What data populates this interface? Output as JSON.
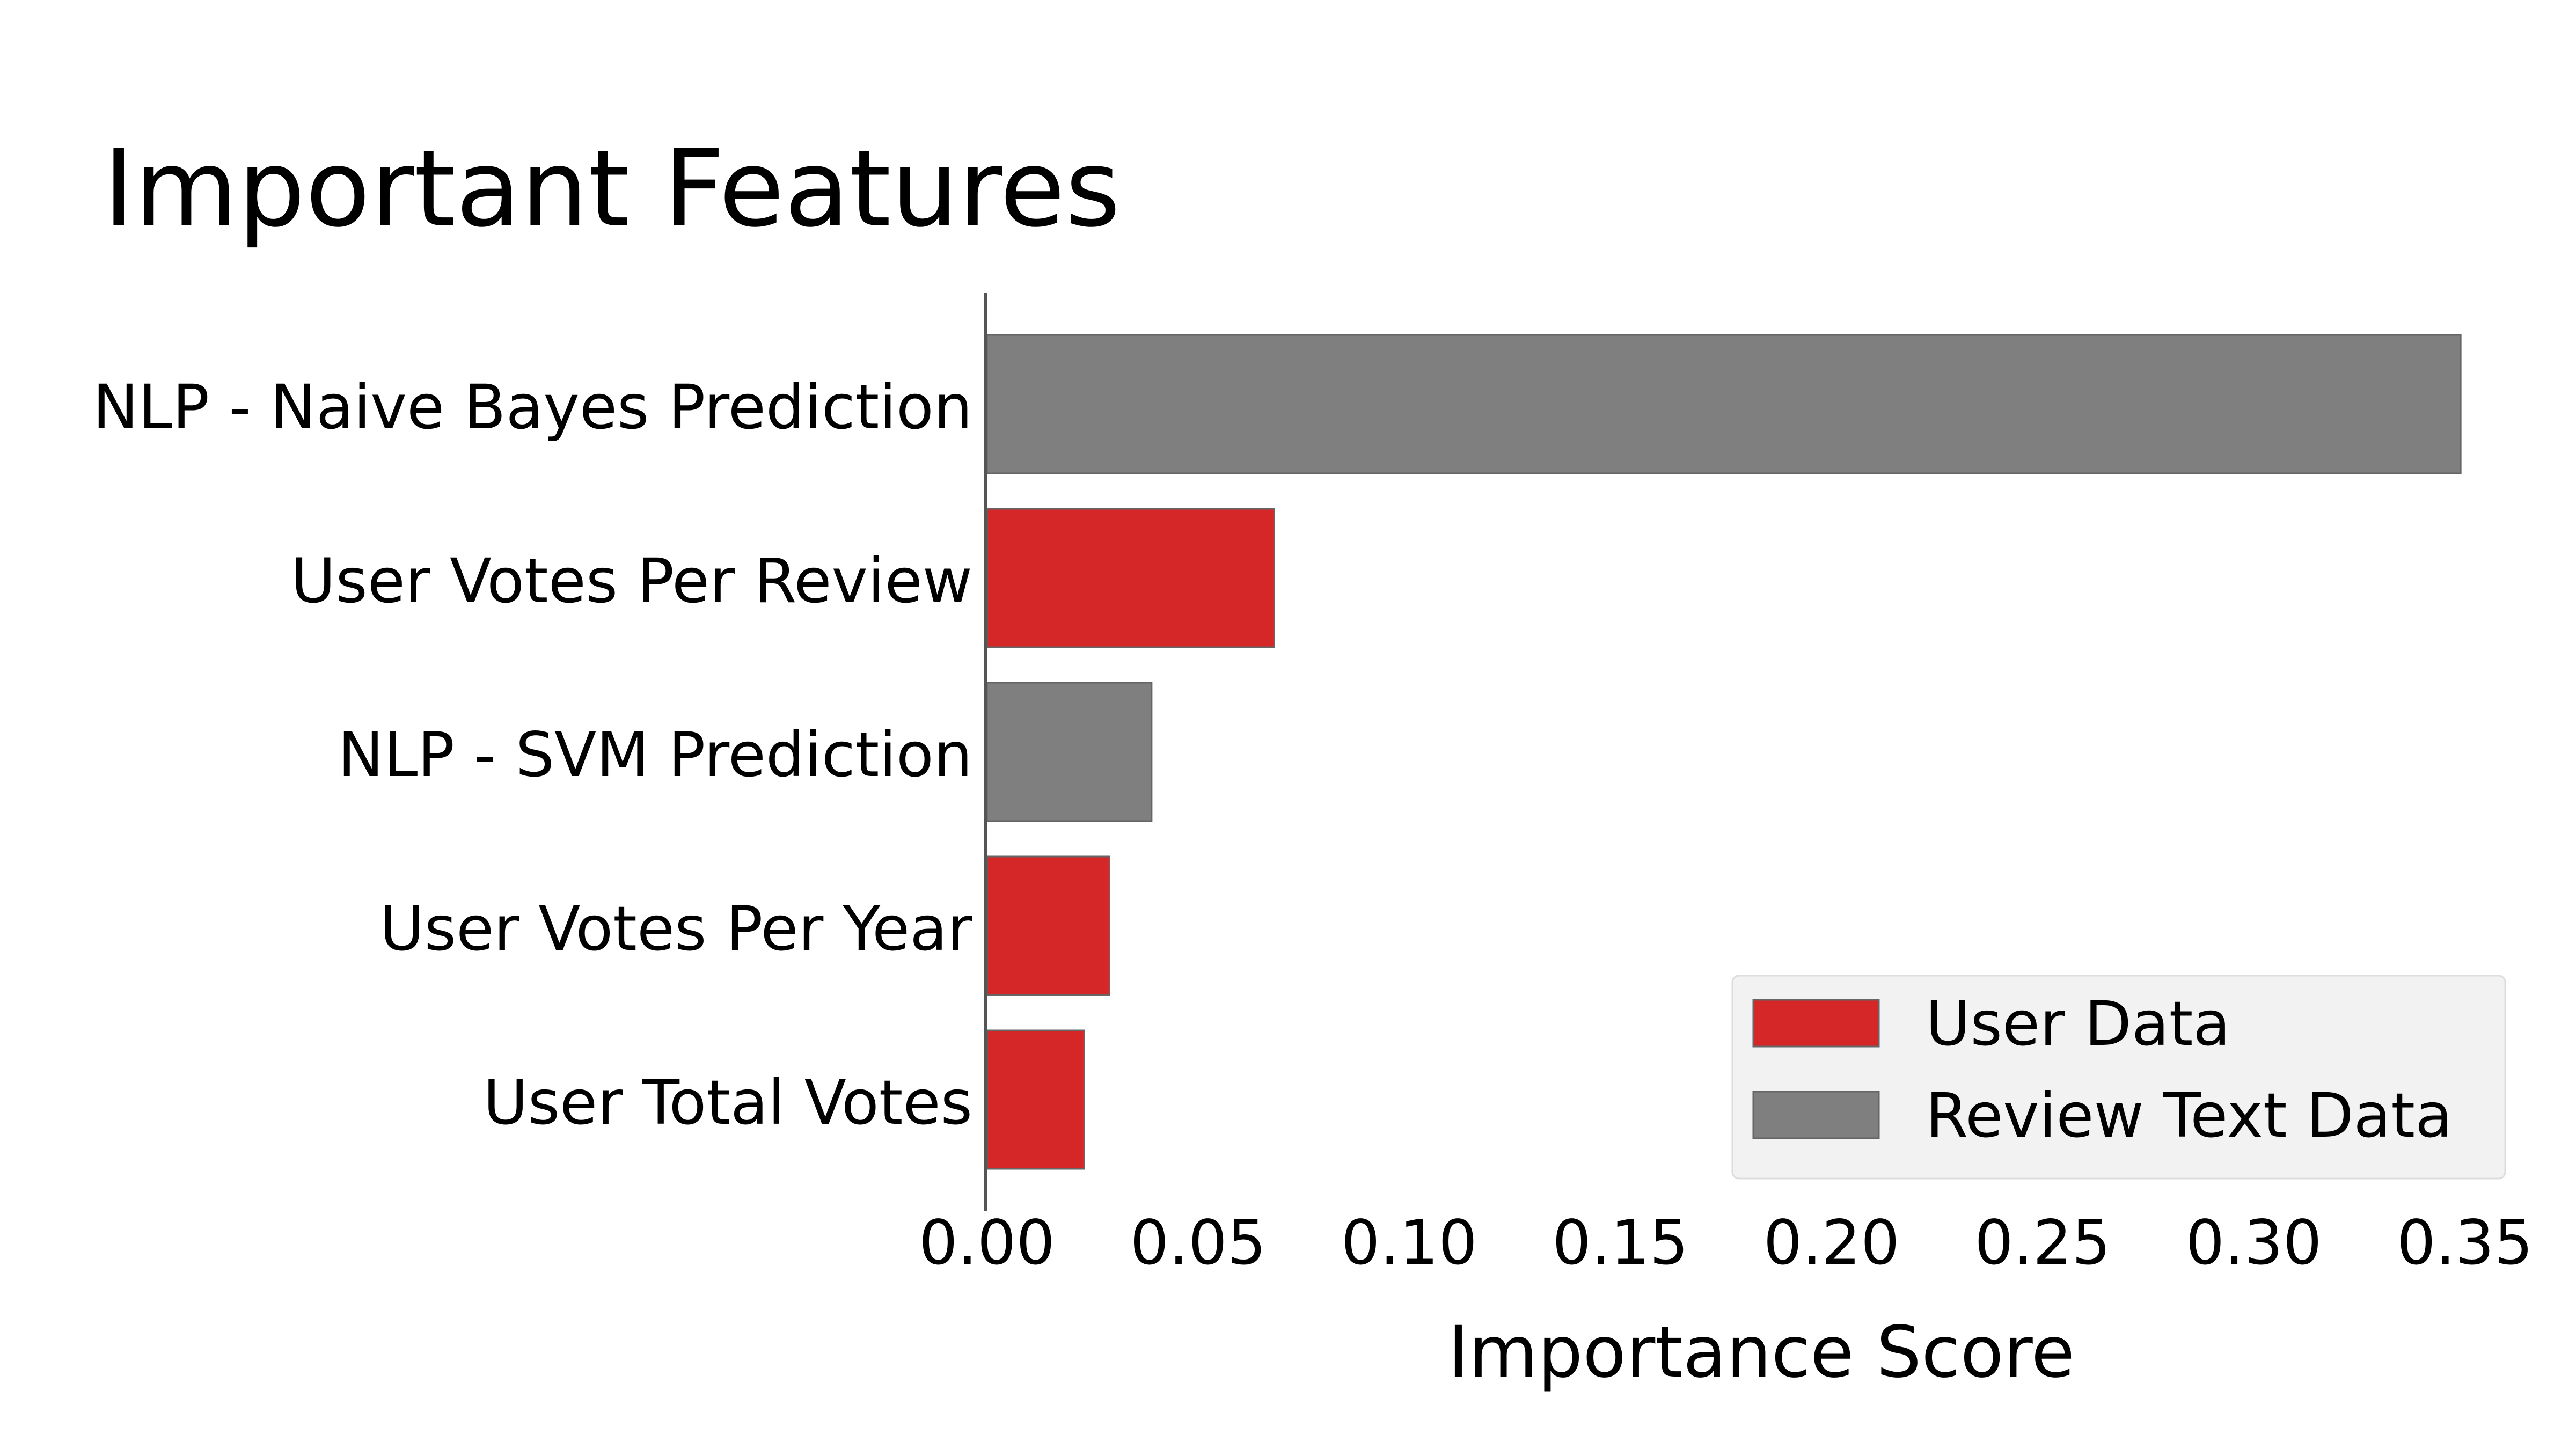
{
  "chart_data": {
    "type": "bar",
    "orientation": "horizontal",
    "title": "Important Features",
    "xlabel": "Importance Score",
    "ylabel": "",
    "xlim": [
      0,
      0.35
    ],
    "xticks": [
      "0.00",
      "0.05",
      "0.10",
      "0.15",
      "0.20",
      "0.25",
      "0.30",
      "0.35"
    ],
    "categories": [
      "NLP - Naive Bayes Prediction",
      "User Votes Per Review",
      "NLP - SVM Prediction",
      "User Votes Per Year",
      "User Total Votes"
    ],
    "values": [
      0.349,
      0.068,
      0.039,
      0.029,
      0.023
    ],
    "groups": [
      "Review Text Data",
      "User Data",
      "Review Text Data",
      "User Data",
      "User Data"
    ],
    "legend": {
      "position": "bottom-right",
      "entries": [
        {
          "label": "User Data",
          "color": "#d62728"
        },
        {
          "label": "Review Text Data",
          "color": "#7f7f7f"
        }
      ]
    },
    "grid": false
  }
}
